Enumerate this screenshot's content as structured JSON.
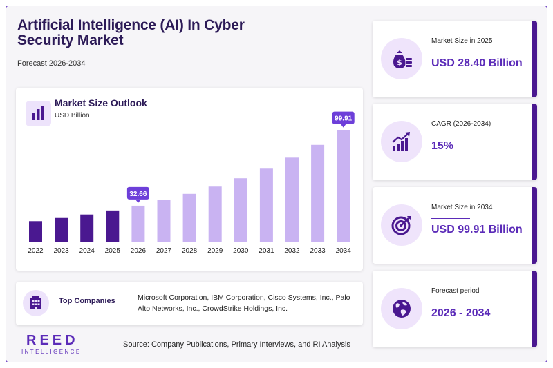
{
  "header": {
    "title": "Artificial Intelligence (AI) In Cyber Security Market",
    "subtitle": "Forecast 2026-2034"
  },
  "chart_card": {
    "title": "Market Size Outlook",
    "unit": "USD Billion",
    "icon": "bar-chart-icon"
  },
  "chart_data": {
    "type": "bar",
    "categories": [
      "2022",
      "2023",
      "2024",
      "2025",
      "2026",
      "2027",
      "2028",
      "2029",
      "2030",
      "2031",
      "2032",
      "2033",
      "2034"
    ],
    "values": [
      18.9,
      21.7,
      24.8,
      28.4,
      32.66,
      37.6,
      43.2,
      49.7,
      57.1,
      65.7,
      75.5,
      86.9,
      99.91
    ],
    "data_labels": [
      {
        "category": "2026",
        "text": "32.66"
      },
      {
        "category": "2034",
        "text": "99.91"
      }
    ],
    "historical_color": "#4a1890",
    "forecast_color": "#c9b3f2",
    "label_color": "#6d3fd9",
    "ylim": [
      0,
      112
    ],
    "grid": false
  },
  "companies": {
    "title": "Top Companies",
    "icon": "building-icon",
    "list": "Microsoft Corporation, IBM Corporation, Cisco Systems, Inc., Palo Alto Networks, Inc., CrowdStrike Holdings, Inc."
  },
  "footer": {
    "logo_main": "REED",
    "logo_sub": "INTELLIGENCE",
    "source": "Source: Company Publications, Primary Interviews, and RI Analysis"
  },
  "stats": [
    {
      "label": "Market Size in 2025",
      "value": "USD 28.40 Billion",
      "icon": "money-bag-icon"
    },
    {
      "label": "CAGR (2026-2034)",
      "value": "15%",
      "icon": "growth-chart-icon"
    },
    {
      "label": "Market Size in 2034",
      "value": "USD 99.91 Billion",
      "icon": "target-icon"
    },
    {
      "label": "Forecast period",
      "value": "2026 - 2034",
      "icon": "globe-icon"
    }
  ],
  "colors": {
    "brand": "#5b2bb8",
    "dark": "#2c1a57",
    "accent_bar": "#4a1890",
    "icon_bg": "#efe4fb"
  }
}
